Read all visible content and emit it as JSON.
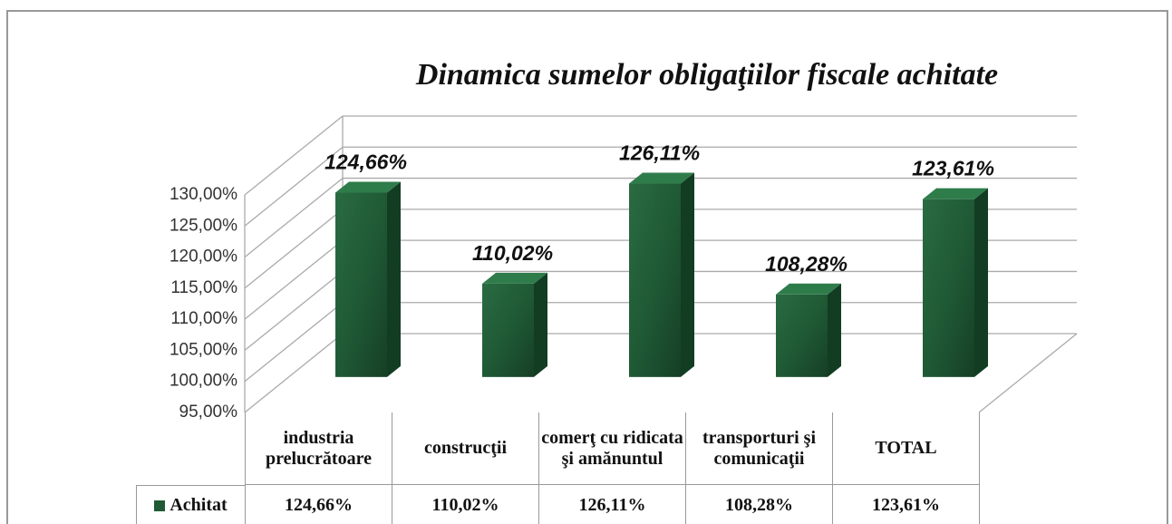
{
  "chart_data": {
    "type": "bar3d",
    "title": "Dinamica sumelor obligaţiilor fiscale achitate",
    "categories": [
      "industria prelucrătoare",
      "construcţii",
      "comerţ cu ridicata şi amănuntul",
      "transporturi şi comunicaţii",
      "TOTAL"
    ],
    "series": [
      {
        "name": "Achitat",
        "color": "#1f5a35",
        "values": [
          124.66,
          110.02,
          126.11,
          108.28,
          123.61
        ],
        "value_labels": [
          "124,66%",
          "110,02%",
          "126,11%",
          "108,28%",
          "123,61%"
        ]
      }
    ],
    "ylim": [
      95,
      130
    ],
    "yticks": [
      {
        "value": 95,
        "label": "95,00%"
      },
      {
        "value": 100,
        "label": "100,00%"
      },
      {
        "value": 105,
        "label": "105,00%"
      },
      {
        "value": 110,
        "label": "110,00%"
      },
      {
        "value": 115,
        "label": "115,00%"
      },
      {
        "value": 120,
        "label": "120,00%"
      },
      {
        "value": 125,
        "label": "125,00%"
      },
      {
        "value": 130,
        "label": "130,00%"
      }
    ],
    "grid": true,
    "data_table": true
  }
}
